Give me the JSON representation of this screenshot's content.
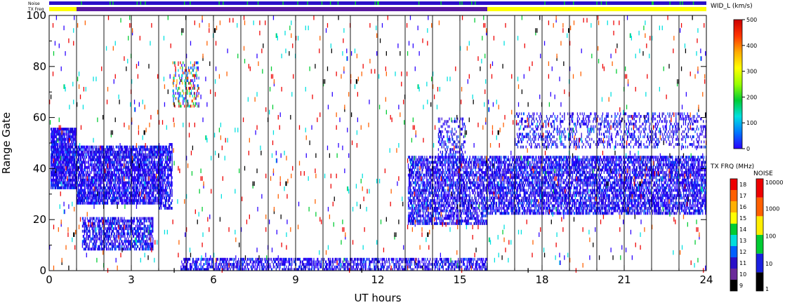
{
  "chart_data": {
    "type": "heatmap",
    "title": "",
    "xlabel": "UT hours",
    "ylabel": "Range Gate",
    "xlim": [
      0,
      24
    ],
    "ylim": [
      0,
      100
    ],
    "x_ticks": [
      "0",
      "3",
      "6",
      "9",
      "12",
      "15",
      "18",
      "21",
      "24"
    ],
    "y_ticks": [
      "0",
      "20",
      "40",
      "60",
      "80",
      "100"
    ],
    "grid": "vertical lines at scan boundaries",
    "status_strips": {
      "noise_label": "Noise",
      "txfreq_label": "TX Freq",
      "txfreq_segments": [
        {
          "start": 0,
          "end": 1,
          "color": "#ffff00"
        },
        {
          "start": 1,
          "end": 16,
          "color": "#5a1aa0"
        },
        {
          "start": 16,
          "end": 24,
          "color": "#ffff00"
        }
      ]
    },
    "colorbars": {
      "width": {
        "label": "WID_L (km/s)",
        "ticks": [
          "0",
          "100",
          "200",
          "300",
          "400",
          "500"
        ],
        "range": [
          0,
          500
        ],
        "gradient": [
          "#2a00ff",
          "#0077ff",
          "#00e0e0",
          "#00cc33",
          "#99ff00",
          "#ffff00",
          "#ffaa00",
          "#ff3300",
          "#cc0000"
        ]
      },
      "tx_freq": {
        "label": "TX FRQ (MHz)",
        "ticks": [
          "9",
          "10",
          "11",
          "12",
          "13",
          "14",
          "15",
          "16",
          "17",
          "18"
        ],
        "colors": [
          "#000000",
          "#6a2a9a",
          "#2a10c8",
          "#0060ff",
          "#00dddd",
          "#00cc33",
          "#ffff00",
          "#ffb000",
          "#ff6000",
          "#ee0000"
        ]
      },
      "noise": {
        "label": "NOISE",
        "ticks": [
          "1",
          "10",
          "100",
          "1000",
          "10000"
        ],
        "colors": [
          "#000000",
          "#1a20e0",
          "#00cc33",
          "#ffee00",
          "#ff6000",
          "#ee0000"
        ]
      }
    },
    "scatter_regions": [
      {
        "x": [
          0.05,
          1.0
        ],
        "y": [
          32,
          56
        ],
        "density": 0.85,
        "palette": "blue"
      },
      {
        "x": [
          1.0,
          4.1
        ],
        "y": [
          26,
          49
        ],
        "density": 0.7,
        "palette": "blue"
      },
      {
        "x": [
          1.2,
          3.8
        ],
        "y": [
          8,
          21
        ],
        "density": 0.55,
        "palette": "blue"
      },
      {
        "x": [
          4.0,
          4.5
        ],
        "y": [
          24,
          50
        ],
        "density": 0.6,
        "palette": "blue"
      },
      {
        "x": [
          4.5,
          5.5
        ],
        "y": [
          64,
          82
        ],
        "density": 0.25,
        "palette": "mixed"
      },
      {
        "x": [
          13.1,
          16.0
        ],
        "y": [
          18,
          45
        ],
        "density": 0.55,
        "palette": "blue"
      },
      {
        "x": [
          14.2,
          15.2
        ],
        "y": [
          42,
          60
        ],
        "density": 0.25,
        "palette": "blue"
      },
      {
        "x": [
          16.0,
          24.0
        ],
        "y": [
          22,
          45
        ],
        "density": 0.6,
        "palette": "blue"
      },
      {
        "x": [
          17.0,
          24.0
        ],
        "y": [
          48,
          62
        ],
        "density": 0.25,
        "palette": "blue"
      },
      {
        "x": [
          4.8,
          16.0
        ],
        "y": [
          0,
          5
        ],
        "density": 0.5,
        "palette": "blue"
      },
      {
        "x": [
          0.0,
          24.0
        ],
        "y": [
          0,
          100
        ],
        "density": 0.012,
        "palette": "sparse"
      }
    ],
    "scan_boundaries": [
      1.0,
      2.0,
      3.0,
      4.0,
      5.0,
      6.0,
      7.0,
      8.0,
      9.0,
      10.0,
      11.0,
      12.0,
      13.0,
      14.0,
      15.0,
      16.0,
      17.0,
      18.0,
      19.0,
      20.0,
      21.0,
      22.0,
      23.0
    ]
  }
}
